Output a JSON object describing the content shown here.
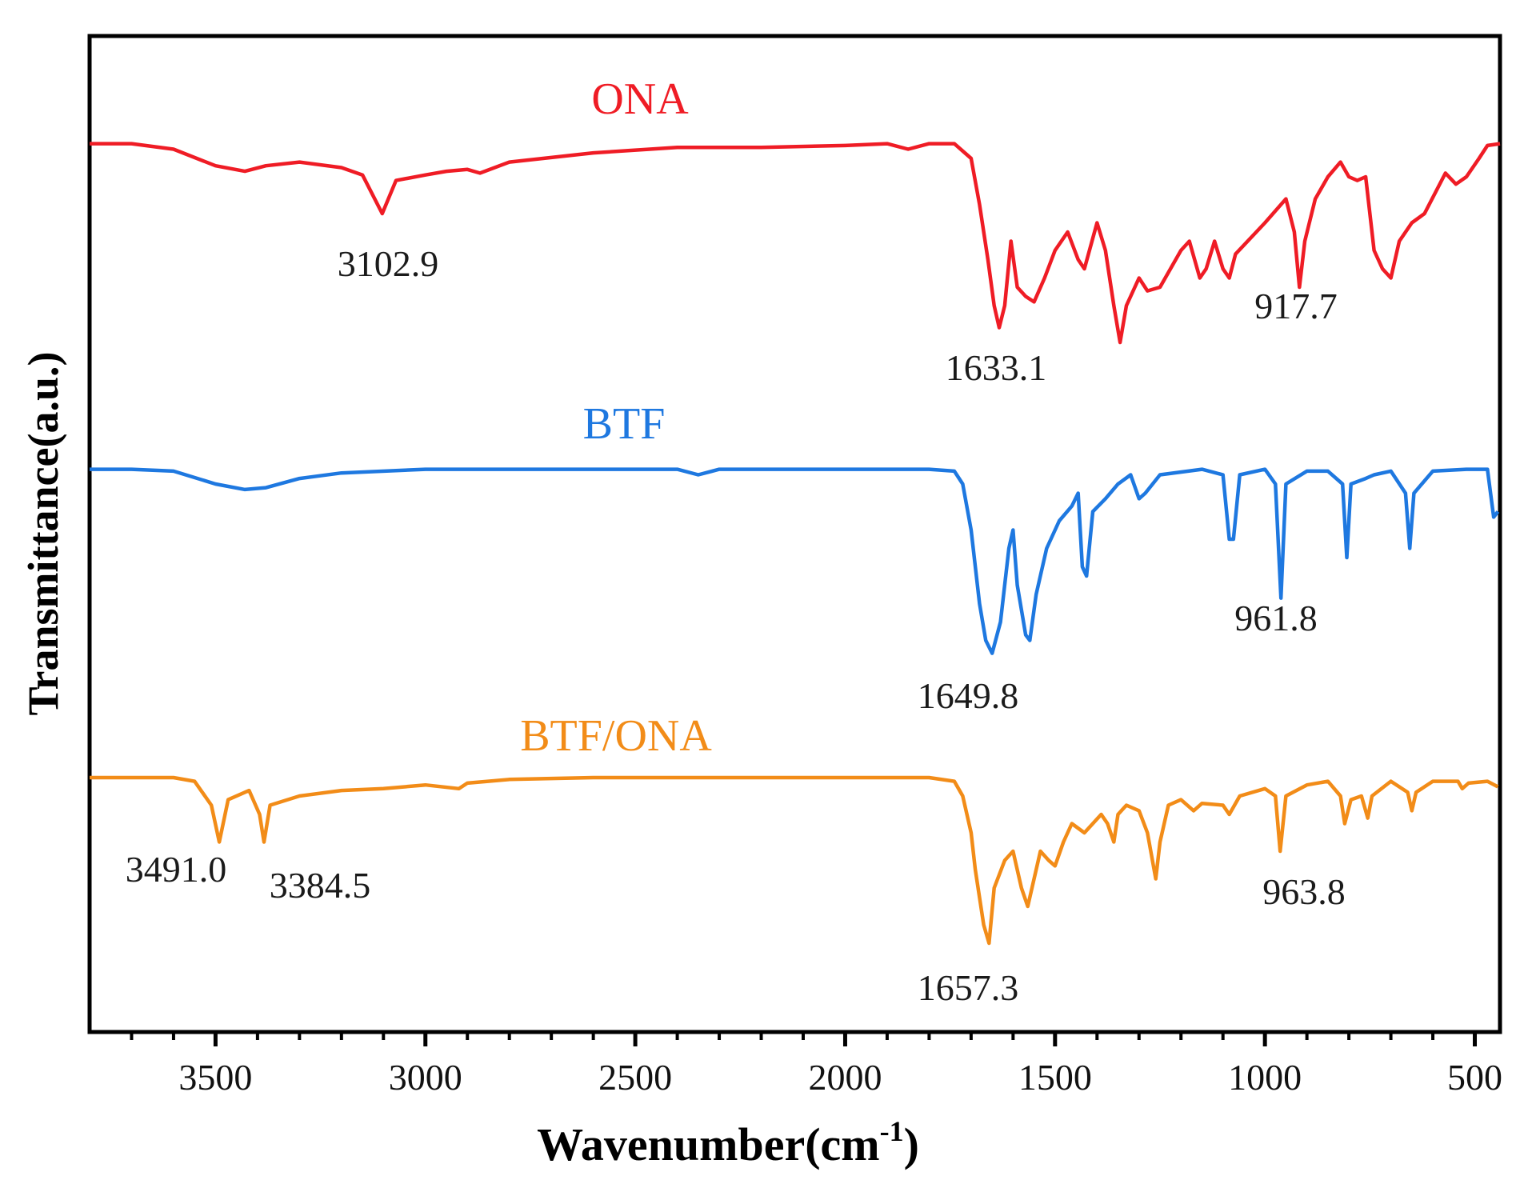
{
  "chart_data": {
    "type": "line",
    "xlabel": "Wavenumber(cm",
    "xlabel_sup": "-1",
    "xlabel_close": ")",
    "ylabel": "Transmittance(a.u.)",
    "xlim": [
      3800,
      440
    ],
    "x_inverted": true,
    "xticks": [
      3500,
      3000,
      2500,
      2000,
      1500,
      1000,
      500
    ],
    "xtick_labels": [
      "3500",
      "3000",
      "2500",
      "2000",
      "1500",
      "1000",
      "500"
    ],
    "y_units": "arbitrary (0 = baseline, 1 = deepest band), traces vertically offset",
    "series": [
      {
        "name": "ONA",
        "color": "#ef1c25",
        "baseline_offset": 0,
        "points": [
          [
            3800,
            0.02
          ],
          [
            3700,
            0.02
          ],
          [
            3600,
            0.05
          ],
          [
            3500,
            0.14
          ],
          [
            3430,
            0.17
          ],
          [
            3380,
            0.14
          ],
          [
            3300,
            0.12
          ],
          [
            3200,
            0.15
          ],
          [
            3150,
            0.19
          ],
          [
            3102.9,
            0.4
          ],
          [
            3070,
            0.22
          ],
          [
            3000,
            0.19
          ],
          [
            2950,
            0.17
          ],
          [
            2900,
            0.16
          ],
          [
            2870,
            0.18
          ],
          [
            2800,
            0.12
          ],
          [
            2600,
            0.07
          ],
          [
            2400,
            0.04
          ],
          [
            2200,
            0.04
          ],
          [
            2000,
            0.03
          ],
          [
            1900,
            0.02
          ],
          [
            1850,
            0.05
          ],
          [
            1800,
            0.02
          ],
          [
            1740,
            0.02
          ],
          [
            1700,
            0.1
          ],
          [
            1680,
            0.35
          ],
          [
            1660,
            0.65
          ],
          [
            1645,
            0.9
          ],
          [
            1633.1,
            1.02
          ],
          [
            1620,
            0.9
          ],
          [
            1605,
            0.55
          ],
          [
            1590,
            0.8
          ],
          [
            1570,
            0.85
          ],
          [
            1550,
            0.88
          ],
          [
            1525,
            0.75
          ],
          [
            1500,
            0.6
          ],
          [
            1470,
            0.5
          ],
          [
            1445,
            0.65
          ],
          [
            1430,
            0.7
          ],
          [
            1400,
            0.45
          ],
          [
            1380,
            0.6
          ],
          [
            1360,
            0.9
          ],
          [
            1345,
            1.1
          ],
          [
            1330,
            0.9
          ],
          [
            1300,
            0.75
          ],
          [
            1280,
            0.82
          ],
          [
            1250,
            0.8
          ],
          [
            1200,
            0.6
          ],
          [
            1180,
            0.55
          ],
          [
            1155,
            0.75
          ],
          [
            1140,
            0.7
          ],
          [
            1120,
            0.55
          ],
          [
            1100,
            0.7
          ],
          [
            1085,
            0.75
          ],
          [
            1070,
            0.62
          ],
          [
            1000,
            0.45
          ],
          [
            950,
            0.32
          ],
          [
            930,
            0.5
          ],
          [
            917.7,
            0.8
          ],
          [
            905,
            0.55
          ],
          [
            880,
            0.32
          ],
          [
            850,
            0.2
          ],
          [
            820,
            0.12
          ],
          [
            800,
            0.2
          ],
          [
            780,
            0.22
          ],
          [
            760,
            0.2
          ],
          [
            740,
            0.6
          ],
          [
            720,
            0.7
          ],
          [
            700,
            0.75
          ],
          [
            680,
            0.55
          ],
          [
            650,
            0.45
          ],
          [
            620,
            0.4
          ],
          [
            570,
            0.18
          ],
          [
            545,
            0.24
          ],
          [
            520,
            0.2
          ],
          [
            490,
            0.1
          ],
          [
            470,
            0.03
          ],
          [
            440,
            0.02
          ]
        ]
      },
      {
        "name": "BTF",
        "color": "#1e78e0",
        "baseline_offset": 1,
        "points": [
          [
            3800,
            0.02
          ],
          [
            3700,
            0.02
          ],
          [
            3600,
            0.03
          ],
          [
            3500,
            0.1
          ],
          [
            3430,
            0.13
          ],
          [
            3380,
            0.12
          ],
          [
            3300,
            0.07
          ],
          [
            3200,
            0.04
          ],
          [
            3000,
            0.02
          ],
          [
            2800,
            0.02
          ],
          [
            2600,
            0.02
          ],
          [
            2400,
            0.02
          ],
          [
            2350,
            0.05
          ],
          [
            2300,
            0.02
          ],
          [
            2200,
            0.02
          ],
          [
            2000,
            0.02
          ],
          [
            1800,
            0.02
          ],
          [
            1740,
            0.03
          ],
          [
            1720,
            0.1
          ],
          [
            1700,
            0.35
          ],
          [
            1680,
            0.75
          ],
          [
            1665,
            0.95
          ],
          [
            1649.8,
            1.02
          ],
          [
            1630,
            0.85
          ],
          [
            1610,
            0.45
          ],
          [
            1600,
            0.35
          ],
          [
            1590,
            0.65
          ],
          [
            1570,
            0.92
          ],
          [
            1560,
            0.95
          ],
          [
            1545,
            0.7
          ],
          [
            1520,
            0.45
          ],
          [
            1490,
            0.3
          ],
          [
            1460,
            0.22
          ],
          [
            1445,
            0.15
          ],
          [
            1435,
            0.55
          ],
          [
            1425,
            0.6
          ],
          [
            1410,
            0.25
          ],
          [
            1380,
            0.18
          ],
          [
            1350,
            0.1
          ],
          [
            1320,
            0.05
          ],
          [
            1300,
            0.18
          ],
          [
            1285,
            0.15
          ],
          [
            1250,
            0.05
          ],
          [
            1150,
            0.02
          ],
          [
            1100,
            0.05
          ],
          [
            1085,
            0.4
          ],
          [
            1075,
            0.4
          ],
          [
            1060,
            0.05
          ],
          [
            1000,
            0.02
          ],
          [
            975,
            0.1
          ],
          [
            961.8,
            0.72
          ],
          [
            950,
            0.1
          ],
          [
            900,
            0.03
          ],
          [
            850,
            0.03
          ],
          [
            815,
            0.1
          ],
          [
            805,
            0.5
          ],
          [
            795,
            0.1
          ],
          [
            760,
            0.07
          ],
          [
            740,
            0.05
          ],
          [
            700,
            0.03
          ],
          [
            665,
            0.15
          ],
          [
            655,
            0.45
          ],
          [
            645,
            0.15
          ],
          [
            600,
            0.03
          ],
          [
            520,
            0.02
          ],
          [
            470,
            0.02
          ],
          [
            455,
            0.28
          ],
          [
            445,
            0.25
          ]
        ]
      },
      {
        "name": "BTF/ONA",
        "color": "#f28c18",
        "baseline_offset": 2,
        "points": [
          [
            3800,
            0.0
          ],
          [
            3600,
            0.0
          ],
          [
            3550,
            0.02
          ],
          [
            3510,
            0.15
          ],
          [
            3491.0,
            0.35
          ],
          [
            3470,
            0.12
          ],
          [
            3420,
            0.07
          ],
          [
            3395,
            0.2
          ],
          [
            3384.5,
            0.35
          ],
          [
            3370,
            0.15
          ],
          [
            3300,
            0.1
          ],
          [
            3200,
            0.07
          ],
          [
            3100,
            0.06
          ],
          [
            3000,
            0.04
          ],
          [
            2920,
            0.06
          ],
          [
            2900,
            0.03
          ],
          [
            2800,
            0.01
          ],
          [
            2600,
            0.0
          ],
          [
            2400,
            0.0
          ],
          [
            2200,
            0.0
          ],
          [
            2000,
            0.0
          ],
          [
            1800,
            0.0
          ],
          [
            1740,
            0.02
          ],
          [
            1720,
            0.1
          ],
          [
            1700,
            0.3
          ],
          [
            1690,
            0.5
          ],
          [
            1670,
            0.8
          ],
          [
            1657.3,
            0.9
          ],
          [
            1645,
            0.6
          ],
          [
            1620,
            0.45
          ],
          [
            1600,
            0.4
          ],
          [
            1580,
            0.6
          ],
          [
            1565,
            0.7
          ],
          [
            1550,
            0.55
          ],
          [
            1535,
            0.4
          ],
          [
            1515,
            0.45
          ],
          [
            1500,
            0.48
          ],
          [
            1480,
            0.35
          ],
          [
            1460,
            0.25
          ],
          [
            1430,
            0.3
          ],
          [
            1410,
            0.25
          ],
          [
            1390,
            0.2
          ],
          [
            1375,
            0.25
          ],
          [
            1360,
            0.35
          ],
          [
            1350,
            0.2
          ],
          [
            1330,
            0.15
          ],
          [
            1300,
            0.18
          ],
          [
            1280,
            0.3
          ],
          [
            1260,
            0.55
          ],
          [
            1250,
            0.35
          ],
          [
            1230,
            0.15
          ],
          [
            1200,
            0.12
          ],
          [
            1170,
            0.18
          ],
          [
            1150,
            0.14
          ],
          [
            1100,
            0.15
          ],
          [
            1085,
            0.2
          ],
          [
            1060,
            0.1
          ],
          [
            1000,
            0.06
          ],
          [
            975,
            0.1
          ],
          [
            963.8,
            0.4
          ],
          [
            950,
            0.1
          ],
          [
            900,
            0.04
          ],
          [
            850,
            0.02
          ],
          [
            820,
            0.1
          ],
          [
            810,
            0.25
          ],
          [
            795,
            0.12
          ],
          [
            770,
            0.1
          ],
          [
            755,
            0.22
          ],
          [
            745,
            0.1
          ],
          [
            700,
            0.02
          ],
          [
            660,
            0.08
          ],
          [
            650,
            0.18
          ],
          [
            640,
            0.08
          ],
          [
            600,
            0.02
          ],
          [
            540,
            0.02
          ],
          [
            530,
            0.06
          ],
          [
            515,
            0.03
          ],
          [
            470,
            0.02
          ],
          [
            445,
            0.05
          ]
        ]
      }
    ],
    "annotations": [
      {
        "text": "3102.9",
        "series": "ONA",
        "x": 3102.9
      },
      {
        "text": "1633.1",
        "series": "ONA",
        "x": 1633.1
      },
      {
        "text": "917.7",
        "series": "ONA",
        "x": 917.7
      },
      {
        "text": "1649.8",
        "series": "BTF",
        "x": 1649.8
      },
      {
        "text": "961.8",
        "series": "BTF",
        "x": 961.8
      },
      {
        "text": "3491.0",
        "series": "BTF/ONA",
        "x": 3491.0
      },
      {
        "text": "3384.5",
        "series": "BTF/ONA",
        "x": 3384.5
      },
      {
        "text": "1657.3",
        "series": "BTF/ONA",
        "x": 1657.3
      },
      {
        "text": "963.8",
        "series": "BTF/ONA",
        "x": 963.8
      }
    ]
  }
}
